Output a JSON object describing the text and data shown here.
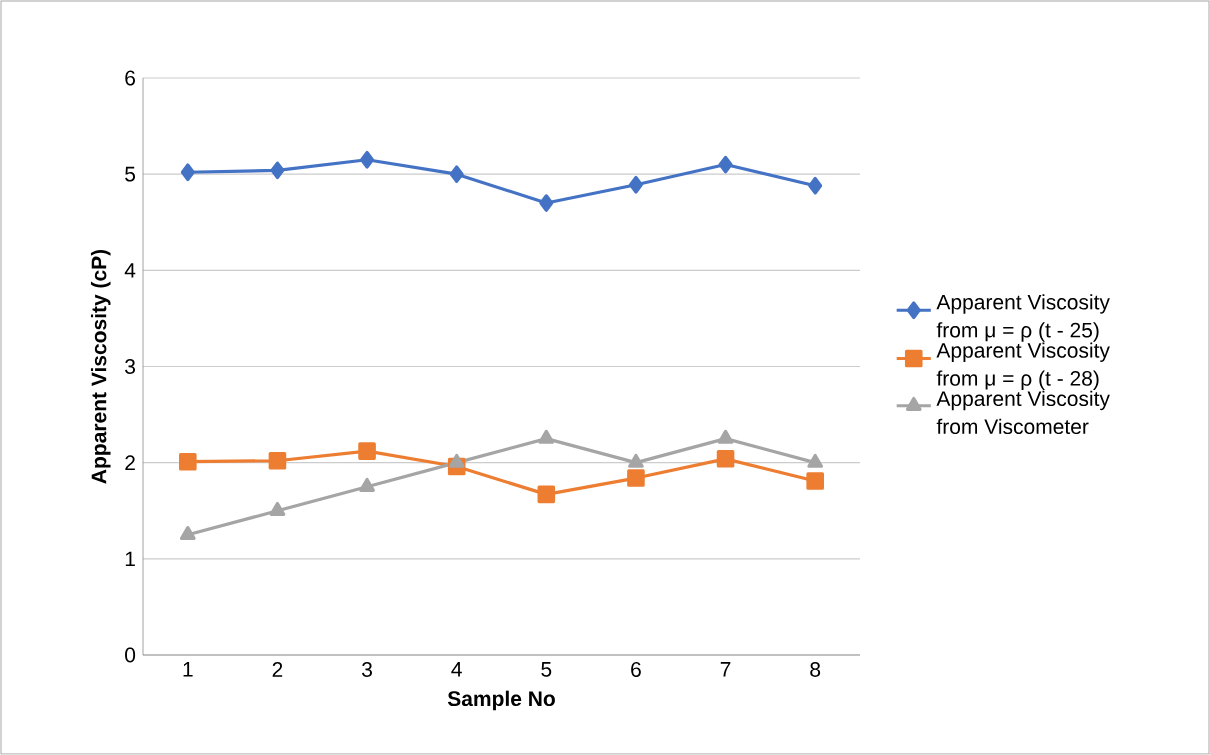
{
  "chart_data": {
    "type": "line",
    "xlabel": "Sample No",
    "ylabel": "Apparent Viscosity (cP)",
    "categories": [
      "1",
      "2",
      "3",
      "4",
      "5",
      "6",
      "7",
      "8"
    ],
    "series": [
      {
        "name": "Apparent Viscosity from μ = ρ (t - 25)",
        "color": "#4472c4",
        "marker": "diamond",
        "values": [
          5.02,
          5.04,
          5.15,
          5.0,
          4.7,
          4.89,
          5.1,
          4.88
        ]
      },
      {
        "name": "Apparent Viscosity from μ = ρ (t - 28)",
        "color": "#ed7d31",
        "marker": "square",
        "values": [
          2.01,
          2.02,
          2.12,
          1.96,
          1.67,
          1.84,
          2.04,
          1.81
        ]
      },
      {
        "name": "Apparent Viscosity from Viscometer",
        "color": "#a5a5a5",
        "marker": "triangle",
        "values": [
          1.25,
          1.5,
          1.75,
          2.0,
          2.25,
          2.0,
          2.25,
          2.0
        ]
      }
    ],
    "ylim": [
      0,
      6
    ],
    "yticks": [
      0,
      1,
      2,
      3,
      4,
      5,
      6
    ],
    "grid": "y",
    "legend": "right",
    "line_style": "solid"
  }
}
